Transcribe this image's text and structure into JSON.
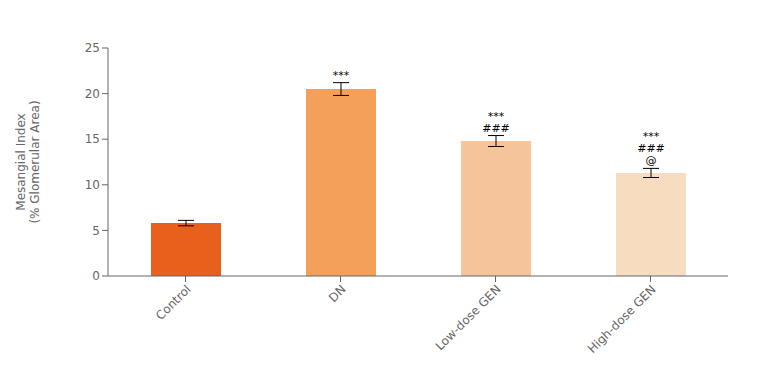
{
  "chart_data": {
    "type": "bar",
    "categories": [
      "Control",
      "DN",
      "Low-dose GEN",
      "High-dose GEN"
    ],
    "values": [
      5.8,
      20.5,
      14.8,
      11.3
    ],
    "errors": [
      0.3,
      0.7,
      0.6,
      0.5
    ],
    "colors": [
      "#E8601C",
      "#F5A05A",
      "#F5C49A",
      "#F8DCC0"
    ],
    "ylabel": "Mesangial Index\n(% Glomerular Area)",
    "ylim": [
      0,
      25
    ],
    "yticks": [
      0,
      5,
      10,
      15,
      20,
      25
    ],
    "grid": false,
    "annotations": [
      {
        "category": "DN",
        "texts": [
          "***"
        ]
      },
      {
        "category": "Low-dose GEN",
        "texts": [
          "###",
          "***"
        ]
      },
      {
        "category": "High-dose GEN",
        "texts": [
          "@",
          "###",
          "***"
        ]
      }
    ]
  }
}
